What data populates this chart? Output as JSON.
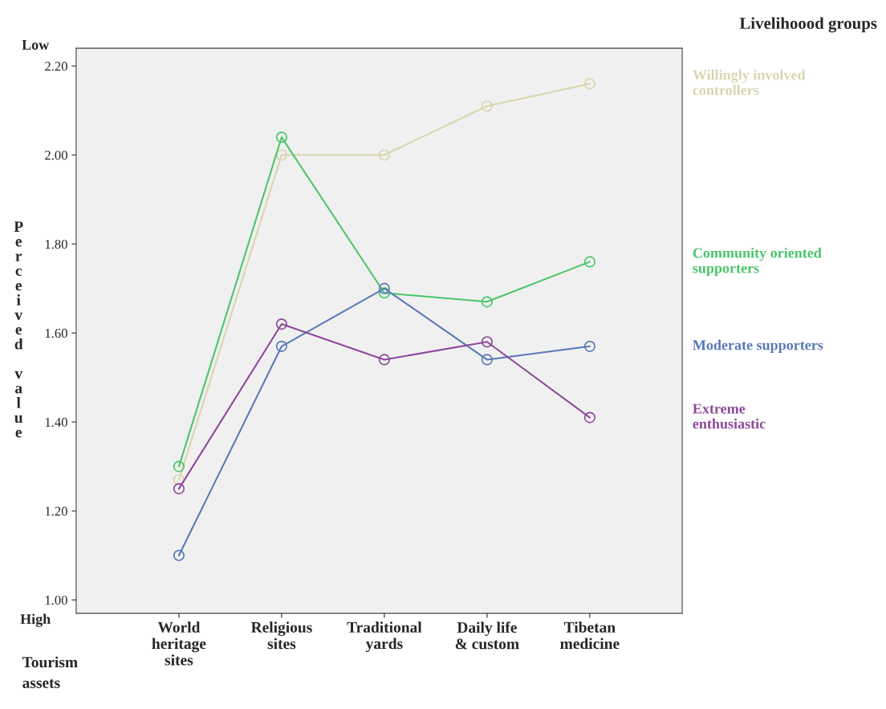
{
  "chart_data": {
    "type": "line",
    "xlabel": "Tourism\nassets",
    "ylabel": "Perceived value",
    "legend_title": "Livelihoood groups",
    "categories": [
      "World\nheritage\nsites",
      "Religious\nsites",
      "Traditional\nyards",
      "Daily life\n& custom",
      "Tibetan\nmedicine"
    ],
    "series": [
      {
        "name": "Willingly involved\ncontrollers",
        "color": "#d9d5b0",
        "values": [
          1.27,
          2.0,
          2.0,
          2.11,
          2.16
        ]
      },
      {
        "name": "Community oriented\nsupporters",
        "color": "#4cc56a",
        "values": [
          1.3,
          2.04,
          1.69,
          1.67,
          1.76
        ]
      },
      {
        "name": "Moderate supporters",
        "color": "#5a78b8",
        "values": [
          1.1,
          1.57,
          1.7,
          1.54,
          1.57
        ]
      },
      {
        "name": "Extreme\nenthusiastic",
        "color": "#8c4a9a",
        "values": [
          1.25,
          1.62,
          1.54,
          1.58,
          1.41
        ]
      }
    ],
    "ylim": [
      0.97,
      2.24
    ],
    "yticks": [
      {
        "value": 1.0,
        "label": "1.00"
      },
      {
        "value": 1.2,
        "label": "1.20"
      },
      {
        "value": 1.4,
        "label": "1.40"
      },
      {
        "value": 1.6,
        "label": "1.60"
      },
      {
        "value": 1.8,
        "label": "1.80"
      },
      {
        "value": 2.0,
        "label": "2.00"
      },
      {
        "value": 2.2,
        "label": "2.20"
      }
    ],
    "annotations": [
      "Low",
      "High"
    ],
    "marker": "circle",
    "grid": false,
    "legend": "right"
  }
}
